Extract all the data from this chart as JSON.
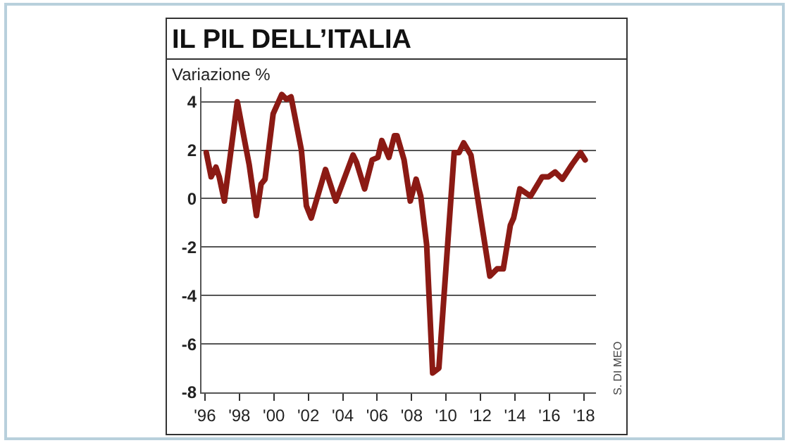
{
  "chart_data": {
    "type": "line",
    "title": "IL PIL DELL’ITALIA",
    "ylabel": "Variazione %",
    "annotations": [
      "S. DI MEO"
    ],
    "x": [
      1996.08,
      1996.36,
      1996.64,
      1996.83,
      1997.13,
      1997.88,
      1998.3,
      1998.57,
      1998.99,
      1999.26,
      1999.49,
      1999.96,
      2000.46,
      2000.73,
      2001.0,
      2001.6,
      2001.89,
      2002.17,
      2003.0,
      2003.6,
      2004.6,
      2004.8,
      2005.27,
      2005.71,
      2006.04,
      2006.27,
      2006.68,
      2007.0,
      2007.15,
      2007.56,
      2007.92,
      2008.26,
      2008.53,
      2008.87,
      2009.22,
      2009.58,
      2010.47,
      2010.75,
      2011.02,
      2011.44,
      2012.54,
      2012.96,
      2013.32,
      2013.73,
      2013.92,
      2014.28,
      2014.9,
      2015.58,
      2015.94,
      2016.33,
      2016.75,
      2017.3,
      2017.8,
      2018.07
    ],
    "series": [
      {
        "color": "#8b1a14",
        "values": [
          1.9,
          0.9,
          1.3,
          0.9,
          -0.1,
          4.0,
          2.4,
          1.4,
          -0.7,
          0.6,
          0.8,
          3.5,
          4.3,
          4.1,
          4.2,
          2.0,
          -0.3,
          -0.8,
          1.2,
          -0.1,
          1.8,
          1.5,
          0.4,
          1.6,
          1.7,
          2.4,
          1.7,
          2.6,
          2.6,
          1.6,
          -0.1,
          0.8,
          0.1,
          -1.9,
          -7.2,
          -7.0,
          1.9,
          1.9,
          2.3,
          1.8,
          -3.2,
          -2.9,
          -2.9,
          -1.1,
          -0.8,
          0.4,
          0.1,
          0.9,
          0.9,
          1.1,
          0.8,
          1.4,
          1.9,
          1.6
        ]
      }
    ],
    "xlim": [
      1995.8,
      2018.7
    ],
    "xticks": [
      {
        "value": 1996,
        "label": "'96"
      },
      {
        "value": 1998,
        "label": "'98"
      },
      {
        "value": 2000,
        "label": "'00"
      },
      {
        "value": 2002,
        "label": "'02"
      },
      {
        "value": 2004,
        "label": "'04"
      },
      {
        "value": 2006,
        "label": "'06"
      },
      {
        "value": 2008,
        "label": "'08"
      },
      {
        "value": 2010,
        "label": "'10"
      },
      {
        "value": 2012,
        "label": "'12"
      },
      {
        "value": 2014,
        "label": "'14"
      },
      {
        "value": 2016,
        "label": "'16"
      },
      {
        "value": 2018,
        "label": "'18"
      }
    ],
    "ylim": [
      -8,
      4.6
    ],
    "yticks": [
      -8,
      -6,
      -4,
      -2,
      0,
      2,
      4
    ],
    "grid": "y",
    "legend": false,
    "marker": "none",
    "line_style": "solid"
  }
}
